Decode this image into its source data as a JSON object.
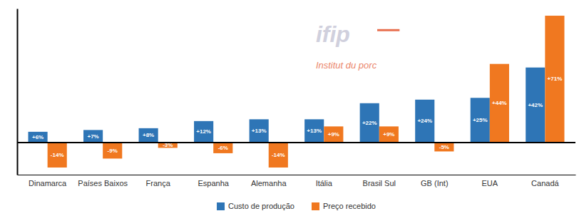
{
  "chart_data": {
    "type": "bar",
    "categories": [
      "Dinamarca",
      "Países Baixos",
      "França",
      "Espanha",
      "Alemanha",
      "Itália",
      "Brasil Sul",
      "GB (Int)",
      "EUA",
      "Canadá"
    ],
    "series": [
      {
        "name": "Custo de produção",
        "color": "#2E75B6",
        "values": [
          6,
          7,
          8,
          12,
          13,
          13,
          22,
          24,
          25,
          42
        ],
        "value_labels": [
          "+6%",
          "+7%",
          "+8%",
          "+12%",
          "+13%",
          "+13%",
          "+22%",
          "+24%",
          "+25%",
          "+42%"
        ]
      },
      {
        "name": "Preço recebido",
        "color": "#F07820",
        "values": [
          -14,
          -9,
          -3,
          -6,
          -14,
          9,
          9,
          -5,
          44,
          71
        ],
        "value_labels": [
          "-14%",
          "-9%",
          "-3%",
          "-6%",
          "-14%",
          "+9%",
          "+9%",
          "-5%",
          "+44%",
          "+71%"
        ]
      }
    ],
    "ylim": [
      -18,
      75
    ],
    "tick_labels": "x",
    "data_labels": true,
    "legend": "bottom",
    "annotations": [
      {
        "text": "ifip",
        "color": "#C8C8D8"
      },
      {
        "text": "Institut du porc",
        "color": "#E87050"
      }
    ]
  }
}
